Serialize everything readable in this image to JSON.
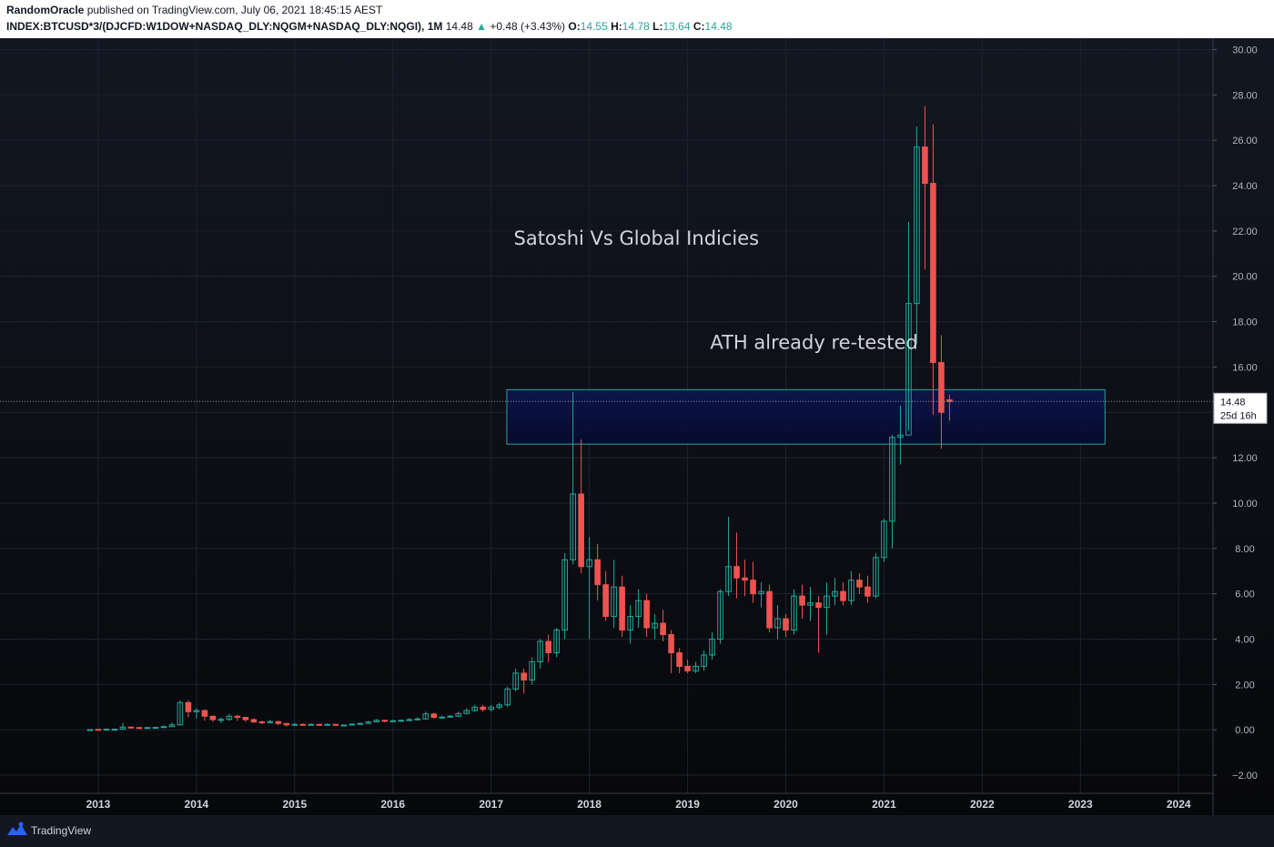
{
  "header": {
    "author": "RandomOracle",
    "published_text": "published on TradingView.com, July 06, 2021 18:45:15 AEST",
    "symbol": "INDEX:BTCUSD*3/(DJCFD:W1DOW+NASDAQ_DLY:NQGM+NASDAQ_DLY:NQGI), 1M",
    "last": "14.48",
    "change": "+0.48 (+3.43%)",
    "o_label": "O:",
    "o_value": "14.55",
    "h_label": "H:",
    "h_value": "14.78",
    "l_label": "L:",
    "l_value": "13.64",
    "c_label": "C:",
    "c_value": "14.48"
  },
  "price_marker": {
    "price": "14.48",
    "countdown": "25d 16h"
  },
  "footer": {
    "brand": "TradingView"
  },
  "colors": {
    "background": "#131722",
    "up": "#26a69a",
    "down": "#ef5350",
    "zone_border": "#26a69a",
    "zone_fill": "#0d1550",
    "grid": "#1e222d"
  },
  "icons": {
    "brand": "tradingview-logo-icon",
    "change_arrow": "triangle-up-icon"
  },
  "chart_data": {
    "type": "candlestick",
    "interval": "1M",
    "ylim": [
      -2.8,
      30.5
    ],
    "yticks": [
      30,
      28,
      26,
      24,
      22,
      20,
      18,
      16,
      14,
      12,
      10,
      8,
      6,
      4,
      2,
      0,
      -2
    ],
    "ytick_labels": [
      "30.00",
      "28.00",
      "26.00",
      "24.00",
      "22.00",
      "20.00",
      "18.00",
      "16.00",
      "14.00",
      "12.00",
      "10.00",
      "8.00",
      "6.00",
      "4.00",
      "2.00",
      "0.00",
      "−2.00"
    ],
    "xlim": [
      2012.0,
      2024.35
    ],
    "xticks": [
      "2013",
      "2014",
      "2015",
      "2016",
      "2017",
      "2018",
      "2019",
      "2020",
      "2021",
      "2022",
      "2023",
      "2024"
    ],
    "annotations": [
      {
        "text": "Satoshi Vs Global Indicies",
        "x": 2017.23,
        "y": 21.4
      },
      {
        "text": "ATH already re-tested",
        "x": 2019.23,
        "y": 16.8
      }
    ],
    "zone": {
      "x0": 2017.16,
      "x1": 2023.25,
      "y0": 12.6,
      "y1": 15.0
    },
    "last_price": 14.48,
    "candles": [
      [
        0.01,
        0.01,
        0.02,
        0.0
      ],
      [
        0.02,
        0.01,
        0.03,
        0.01
      ],
      [
        0.02,
        0.03,
        0.05,
        0.01
      ],
      [
        0.03,
        0.03,
        0.06,
        0.02
      ],
      [
        0.03,
        0.12,
        0.3,
        0.02
      ],
      [
        0.12,
        0.1,
        0.14,
        0.07
      ],
      [
        0.1,
        0.08,
        0.11,
        0.06
      ],
      [
        0.08,
        0.1,
        0.12,
        0.07
      ],
      [
        0.1,
        0.11,
        0.13,
        0.09
      ],
      [
        0.11,
        0.14,
        0.2,
        0.1
      ],
      [
        0.14,
        0.22,
        0.32,
        0.12
      ],
      [
        0.22,
        1.2,
        1.3,
        0.2
      ],
      [
        1.2,
        0.8,
        1.3,
        0.55
      ],
      [
        0.8,
        0.85,
        0.95,
        0.5
      ],
      [
        0.85,
        0.6,
        0.9,
        0.4
      ],
      [
        0.6,
        0.45,
        0.6,
        0.35
      ],
      [
        0.45,
        0.46,
        0.55,
        0.3
      ],
      [
        0.46,
        0.6,
        0.7,
        0.4
      ],
      [
        0.6,
        0.55,
        0.65,
        0.4
      ],
      [
        0.55,
        0.45,
        0.55,
        0.35
      ],
      [
        0.45,
        0.35,
        0.5,
        0.3
      ],
      [
        0.35,
        0.33,
        0.4,
        0.25
      ],
      [
        0.33,
        0.36,
        0.45,
        0.28
      ],
      [
        0.36,
        0.28,
        0.4,
        0.2
      ],
      [
        0.28,
        0.22,
        0.3,
        0.15
      ],
      [
        0.22,
        0.24,
        0.3,
        0.18
      ],
      [
        0.24,
        0.22,
        0.28,
        0.18
      ],
      [
        0.22,
        0.24,
        0.28,
        0.2
      ],
      [
        0.24,
        0.22,
        0.26,
        0.18
      ],
      [
        0.22,
        0.24,
        0.28,
        0.2
      ],
      [
        0.24,
        0.2,
        0.26,
        0.16
      ],
      [
        0.2,
        0.21,
        0.24,
        0.18
      ],
      [
        0.21,
        0.25,
        0.28,
        0.2
      ],
      [
        0.25,
        0.28,
        0.32,
        0.24
      ],
      [
        0.28,
        0.35,
        0.4,
        0.26
      ],
      [
        0.35,
        0.42,
        0.48,
        0.33
      ],
      [
        0.42,
        0.38,
        0.45,
        0.33
      ],
      [
        0.38,
        0.4,
        0.44,
        0.34
      ],
      [
        0.4,
        0.42,
        0.46,
        0.36
      ],
      [
        0.42,
        0.45,
        0.52,
        0.4
      ],
      [
        0.45,
        0.48,
        0.55,
        0.42
      ],
      [
        0.48,
        0.7,
        0.8,
        0.45
      ],
      [
        0.7,
        0.55,
        0.75,
        0.5
      ],
      [
        0.55,
        0.56,
        0.62,
        0.5
      ],
      [
        0.56,
        0.6,
        0.66,
        0.53
      ],
      [
        0.6,
        0.72,
        0.8,
        0.57
      ],
      [
        0.72,
        0.85,
        0.95,
        0.68
      ],
      [
        0.85,
        1.0,
        1.1,
        0.8
      ],
      [
        1.0,
        0.9,
        1.1,
        0.8
      ],
      [
        0.9,
        1.0,
        1.1,
        0.8
      ],
      [
        1.0,
        1.1,
        1.2,
        0.9
      ],
      [
        1.1,
        1.8,
        1.9,
        1.0
      ],
      [
        1.8,
        2.5,
        2.7,
        1.7
      ],
      [
        2.5,
        2.2,
        2.7,
        1.6
      ],
      [
        2.2,
        3.0,
        3.2,
        2.0
      ],
      [
        3.0,
        3.9,
        4.0,
        2.7
      ],
      [
        3.9,
        3.4,
        4.2,
        3.0
      ],
      [
        3.4,
        4.4,
        4.5,
        3.2
      ],
      [
        4.4,
        7.5,
        7.8,
        4.0
      ],
      [
        7.5,
        10.4,
        14.9,
        7.3
      ],
      [
        10.4,
        7.2,
        12.8,
        6.9
      ],
      [
        7.2,
        7.5,
        8.5,
        4.0
      ],
      [
        7.5,
        6.4,
        8.2,
        5.7
      ],
      [
        6.4,
        5.0,
        7.0,
        4.8
      ],
      [
        5.0,
        6.3,
        7.5,
        4.5
      ],
      [
        6.3,
        4.4,
        6.8,
        4.1
      ],
      [
        4.4,
        5.0,
        5.5,
        3.8
      ],
      [
        5.0,
        5.7,
        6.2,
        4.5
      ],
      [
        5.7,
        4.5,
        6.0,
        4.1
      ],
      [
        4.5,
        4.7,
        5.1,
        4.0
      ],
      [
        4.7,
        4.2,
        5.3,
        3.9
      ],
      [
        4.2,
        3.4,
        4.4,
        2.5
      ],
      [
        3.4,
        2.8,
        3.6,
        2.5
      ],
      [
        2.8,
        2.6,
        3.1,
        2.5
      ],
      [
        2.6,
        2.8,
        3.0,
        2.5
      ],
      [
        2.8,
        3.3,
        3.5,
        2.6
      ],
      [
        3.3,
        4.0,
        4.3,
        3.1
      ],
      [
        4.0,
        6.1,
        6.2,
        3.8
      ],
      [
        6.1,
        7.2,
        9.4,
        5.9
      ],
      [
        7.2,
        6.7,
        8.7,
        5.8
      ],
      [
        6.7,
        6.6,
        7.5,
        5.9
      ],
      [
        6.6,
        6.0,
        7.4,
        5.6
      ],
      [
        6.0,
        6.1,
        6.5,
        5.4
      ],
      [
        6.1,
        4.5,
        6.4,
        4.3
      ],
      [
        4.5,
        4.9,
        5.5,
        4.0
      ],
      [
        4.9,
        4.4,
        5.1,
        4.1
      ],
      [
        4.4,
        5.9,
        6.2,
        4.2
      ],
      [
        5.9,
        5.5,
        6.4,
        4.9
      ],
      [
        5.5,
        5.6,
        6.3,
        4.8
      ],
      [
        5.6,
        5.4,
        5.9,
        3.4
      ],
      [
        5.4,
        5.9,
        6.5,
        4.2
      ],
      [
        5.9,
        6.1,
        6.7,
        5.5
      ],
      [
        6.1,
        5.7,
        6.5,
        5.5
      ],
      [
        5.7,
        6.6,
        7.0,
        5.5
      ],
      [
        6.6,
        6.3,
        6.9,
        6.0
      ],
      [
        6.3,
        5.9,
        6.8,
        5.6
      ],
      [
        5.9,
        7.6,
        7.8,
        5.8
      ],
      [
        7.6,
        9.2,
        9.3,
        7.4
      ],
      [
        9.2,
        12.9,
        13.0,
        8.0
      ],
      [
        12.9,
        13.0,
        14.3,
        11.7
      ],
      [
        13.0,
        18.8,
        22.4,
        13.2
      ],
      [
        18.8,
        25.7,
        26.6,
        17.0
      ],
      [
        25.7,
        24.1,
        27.5,
        20.3
      ],
      [
        24.1,
        16.2,
        26.7,
        13.9
      ],
      [
        16.2,
        14.0,
        17.4,
        12.4
      ],
      [
        14.55,
        14.48,
        14.78,
        13.64
      ]
    ]
  }
}
